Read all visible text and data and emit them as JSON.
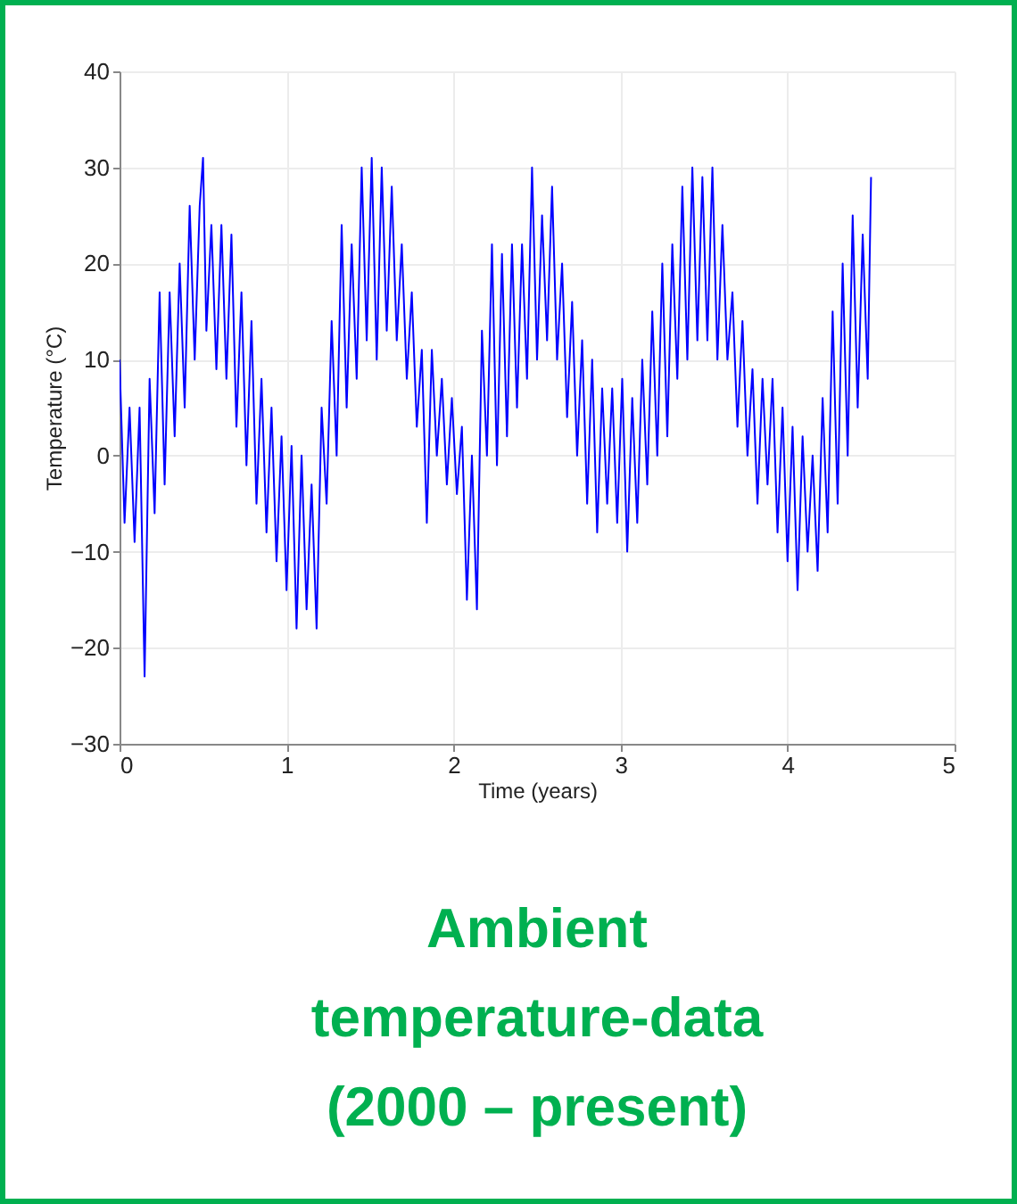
{
  "chart_data": {
    "type": "line",
    "title": "Ambient\ntemperature-data\n(2000 – present)",
    "xlabel": "Time (years)",
    "ylabel": "Temperature (°C)",
    "x": [
      0,
      0.03,
      0.06,
      0.09,
      0.12,
      0.15,
      0.18,
      0.21,
      0.24,
      0.27,
      0.3,
      0.33,
      0.36,
      0.39,
      0.42,
      0.45,
      0.48,
      0.5,
      0.52,
      0.55,
      0.58,
      0.61,
      0.64,
      0.67,
      0.7,
      0.73,
      0.76,
      0.79,
      0.82,
      0.85,
      0.88,
      0.91,
      0.94,
      0.97,
      1.0,
      1.03,
      1.06,
      1.09,
      1.12,
      1.15,
      1.18,
      1.21,
      1.24,
      1.27,
      1.3,
      1.33,
      1.36,
      1.39,
      1.42,
      1.45,
      1.48,
      1.51,
      1.54,
      1.57,
      1.6,
      1.63,
      1.66,
      1.69,
      1.72,
      1.75,
      1.78,
      1.81,
      1.84,
      1.87,
      1.9,
      1.93,
      1.96,
      1.99,
      2.02,
      2.05,
      2.08,
      2.11,
      2.14,
      2.17,
      2.2,
      2.23,
      2.26,
      2.29,
      2.32,
      2.35,
      2.38,
      2.41,
      2.44,
      2.47,
      2.5,
      2.53,
      2.56,
      2.59,
      2.62,
      2.65,
      2.68,
      2.71,
      2.74,
      2.77,
      2.8,
      2.83,
      2.86,
      2.89,
      2.92,
      2.95,
      2.98,
      3.01,
      3.04,
      3.07,
      3.1,
      3.13,
      3.16,
      3.19,
      3.22,
      3.25,
      3.28,
      3.31,
      3.34,
      3.37,
      3.4,
      3.43,
      3.46,
      3.49,
      3.52,
      3.55,
      3.58,
      3.61,
      3.64,
      3.67,
      3.7,
      3.73,
      3.76,
      3.79,
      3.82,
      3.85,
      3.88,
      3.91,
      3.94,
      3.97,
      4.0,
      4.03,
      4.06,
      4.09,
      4.12,
      4.15,
      4.18,
      4.21,
      4.24,
      4.27,
      4.3,
      4.33,
      4.36,
      4.39,
      4.42,
      4.45,
      4.48,
      4.5
    ],
    "values": [
      10,
      -7,
      5,
      -9,
      5,
      -23,
      8,
      -6,
      17,
      -3,
      17,
      2,
      20,
      5,
      26,
      10,
      26,
      31,
      13,
      24,
      9,
      24,
      8,
      23,
      3,
      17,
      -1,
      14,
      -5,
      8,
      -8,
      5,
      -11,
      2,
      -14,
      1,
      -18,
      0,
      -16,
      -3,
      -18,
      5,
      -5,
      14,
      0,
      24,
      5,
      22,
      8,
      30,
      12,
      31,
      10,
      30,
      13,
      28,
      12,
      22,
      8,
      17,
      3,
      11,
      -7,
      11,
      0,
      8,
      -3,
      6,
      -4,
      3,
      -15,
      0,
      -16,
      13,
      0,
      22,
      -1,
      21,
      2,
      22,
      5,
      22,
      8,
      30,
      10,
      25,
      12,
      28,
      10,
      20,
      4,
      16,
      0,
      12,
      -5,
      10,
      -8,
      7,
      -5,
      7,
      -7,
      8,
      -10,
      6,
      -7,
      10,
      -3,
      15,
      0,
      20,
      2,
      22,
      8,
      28,
      10,
      30,
      12,
      29,
      12,
      30,
      10,
      24,
      10,
      17,
      3,
      14,
      0,
      9,
      -5,
      8,
      -3,
      8,
      -8,
      5,
      -11,
      3,
      -14,
      2,
      -10,
      0,
      -12,
      6,
      -8,
      15,
      -5,
      20,
      0,
      25,
      5,
      23,
      8,
      29
    ],
    "color": "#0000ff",
    "xlim": [
      0,
      5
    ],
    "ylim": [
      -30,
      40
    ],
    "xticks": [
      0,
      1,
      2,
      3,
      4,
      5
    ],
    "yticks": [
      -30,
      -20,
      -10,
      0,
      10,
      20,
      30,
      40
    ],
    "grid": true
  }
}
